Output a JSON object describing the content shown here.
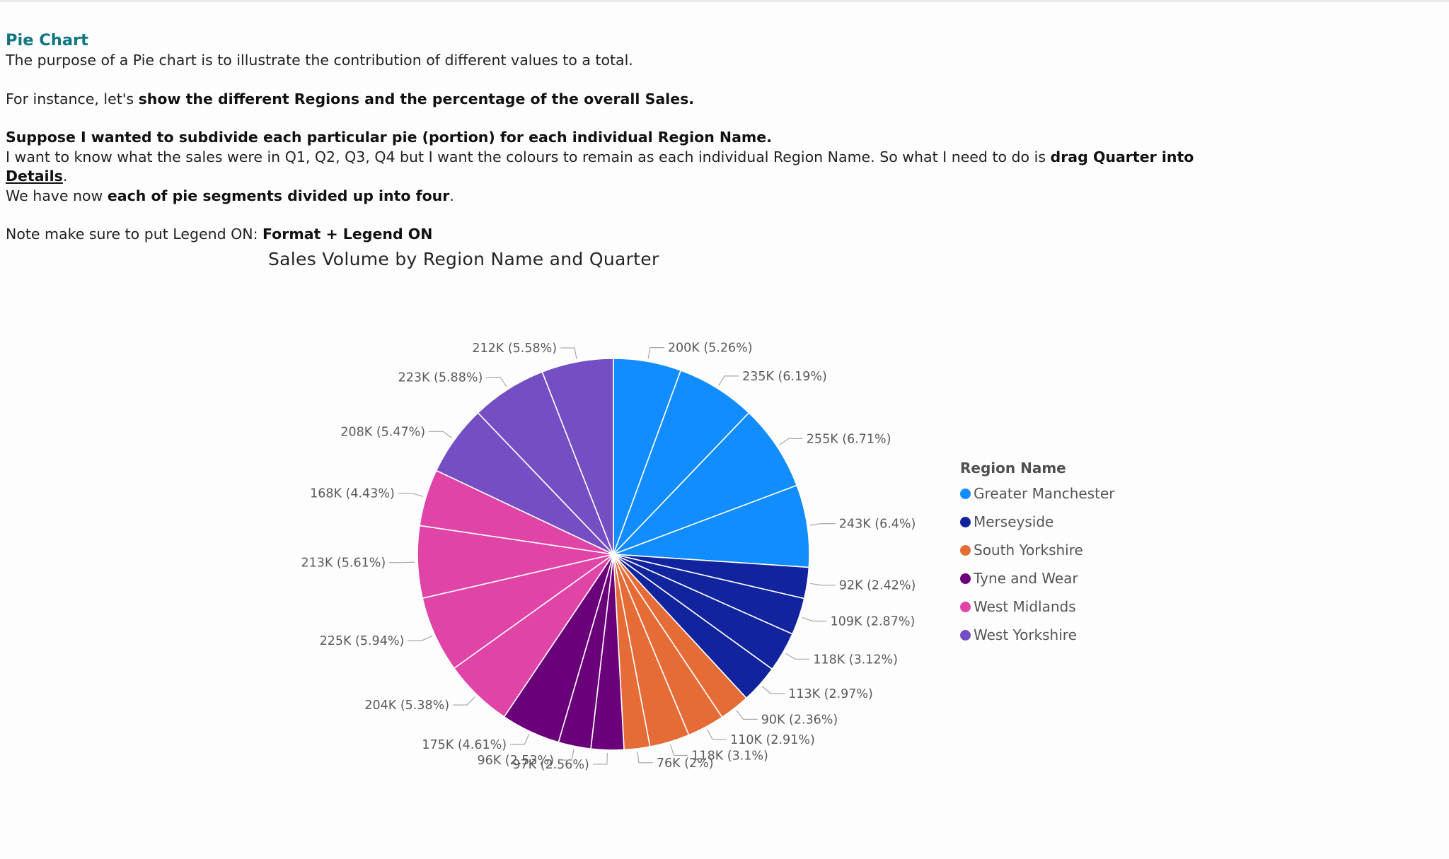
{
  "notes": {
    "heading": "Pie Chart",
    "line1": "The purpose of a Pie chart is to illustrate the contribution of different values to a total.",
    "line2_pre": "For instance, let's ",
    "line2_bold": "show the different Regions and the percentage of the overall Sales.",
    "line3_bold": "Suppose I wanted to subdivide each particular pie (portion) for each individual Region Name.",
    "line4_pre": "I want to know what the sales were in Q1, Q2, Q3, Q4 but I want the colours to remain as each individual Region Name. So what I need to do is ",
    "line4_bold": "drag Quarter into ",
    "line4_link": "Details",
    "line4_end": ".",
    "line5_pre": "We have now ",
    "line5_bold": "each of pie segments divided up into four",
    "line5_end": ".",
    "line6_pre": "Note make sure to put Legend ON: ",
    "line6_bold": "Format + Legend ON"
  },
  "chart_data": {
    "type": "pie",
    "title": "Sales Volume by Region Name and Quarter",
    "legend_title": "Region Name",
    "legend_position": "right",
    "regions": [
      {
        "name": "Greater Manchester",
        "color": "#118DFF"
      },
      {
        "name": "Merseyside",
        "color": "#12239E"
      },
      {
        "name": "South Yorkshire",
        "color": "#E66C37"
      },
      {
        "name": "Tyne and Wear",
        "color": "#6B007B"
      },
      {
        "name": "West Midlands",
        "color": "#E044A7"
      },
      {
        "name": "West Yorkshire",
        "color": "#744EC2"
      }
    ],
    "slices": [
      {
        "region": "Greater Manchester",
        "value": 200,
        "label": "200K (5.26%)"
      },
      {
        "region": "Greater Manchester",
        "value": 235,
        "label": "235K (6.19%)"
      },
      {
        "region": "Greater Manchester",
        "value": 255,
        "label": "255K (6.71%)"
      },
      {
        "region": "Greater Manchester",
        "value": 243,
        "label": "243K (6.4%)"
      },
      {
        "region": "Merseyside",
        "value": 92,
        "label": "92K (2.42%)"
      },
      {
        "region": "Merseyside",
        "value": 109,
        "label": "109K (2.87%)"
      },
      {
        "region": "Merseyside",
        "value": 118,
        "label": "118K (3.12%)"
      },
      {
        "region": "Merseyside",
        "value": 113,
        "label": "113K (2.97%)"
      },
      {
        "region": "South Yorkshire",
        "value": 90,
        "label": "90K (2.36%)"
      },
      {
        "region": "South Yorkshire",
        "value": 110,
        "label": "110K (2.91%)"
      },
      {
        "region": "South Yorkshire",
        "value": 118,
        "label": "118K (3.1%)"
      },
      {
        "region": "South Yorkshire",
        "value": 76,
        "label": "76K (2%)"
      },
      {
        "region": "Tyne and Wear",
        "value": 97,
        "label": "97K (2.56%)"
      },
      {
        "region": "Tyne and Wear",
        "value": 96,
        "label": "96K (2.53%)"
      },
      {
        "region": "Tyne and Wear",
        "value": 175,
        "label": "175K (4.61%)"
      },
      {
        "region": "West Midlands",
        "value": 204,
        "label": "204K (5.38%)"
      },
      {
        "region": "West Midlands",
        "value": 225,
        "label": "225K (5.94%)"
      },
      {
        "region": "West Midlands",
        "value": 213,
        "label": "213K (5.61%)"
      },
      {
        "region": "West Midlands",
        "value": 168,
        "label": "168K (4.43%)"
      },
      {
        "region": "West Yorkshire",
        "value": 208,
        "label": "208K (5.47%)"
      },
      {
        "region": "West Yorkshire",
        "value": 223,
        "label": "223K (5.88%)"
      },
      {
        "region": "West Yorkshire",
        "value": 212,
        "label": "212K (5.58%)"
      }
    ]
  }
}
